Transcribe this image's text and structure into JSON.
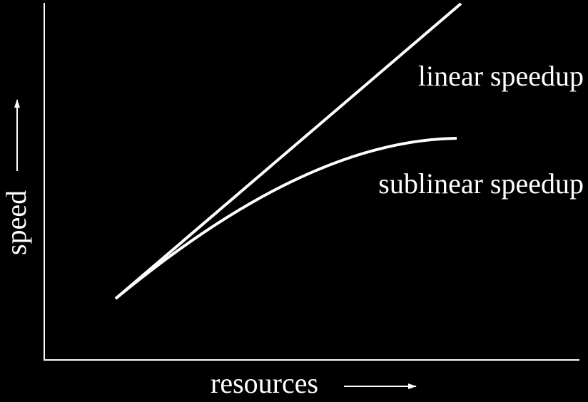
{
  "axes": {
    "x_label": "resources",
    "y_label": "speed"
  },
  "curves": [
    {
      "label": "linear speedup"
    },
    {
      "label": "sublinear speedup"
    }
  ]
}
